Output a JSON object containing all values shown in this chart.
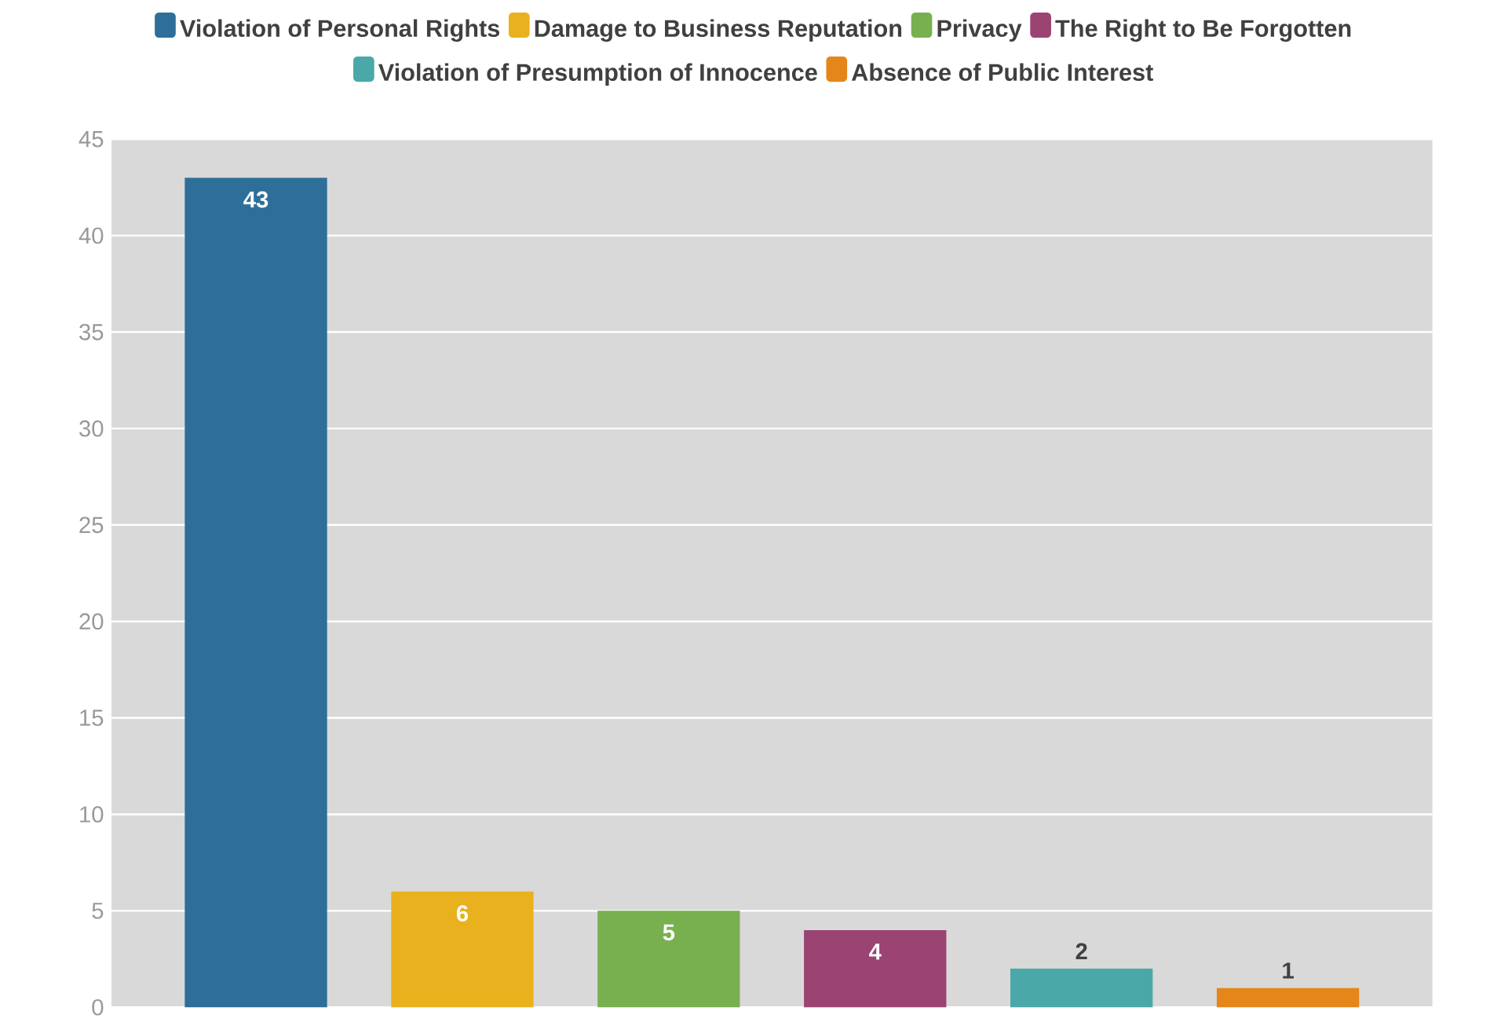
{
  "chart_data": {
    "type": "bar",
    "categories": [
      null,
      null,
      null,
      null,
      null,
      null
    ],
    "series": [
      {
        "name": "Violation of Personal Rights",
        "color": "#2e6f9a",
        "values": [
          43,
          null,
          null,
          null,
          null,
          null
        ]
      },
      {
        "name": "Damage to Business Reputation",
        "color": "#e9b11e",
        "values": [
          null,
          6,
          null,
          null,
          null,
          null
        ]
      },
      {
        "name": "Privacy",
        "color": "#78b04f",
        "values": [
          null,
          null,
          5,
          null,
          null,
          null
        ]
      },
      {
        "name": "The Right to Be Forgotten",
        "color": "#9b4373",
        "values": [
          null,
          null,
          null,
          4,
          null,
          null
        ]
      },
      {
        "name": "Violation of Presumption of Innocence",
        "color": "#4aa9a8",
        "values": [
          null,
          null,
          null,
          null,
          2,
          null
        ]
      },
      {
        "name": "Absence of Public Interest",
        "color": "#e5861a",
        "values": [
          null,
          null,
          null,
          null,
          null,
          1
        ]
      }
    ],
    "ylim": [
      0,
      45
    ],
    "yticks": [
      0,
      5,
      10,
      15,
      20,
      25,
      30,
      35,
      40,
      45
    ],
    "grid": "y",
    "legend": "top",
    "data_labels": true
  }
}
